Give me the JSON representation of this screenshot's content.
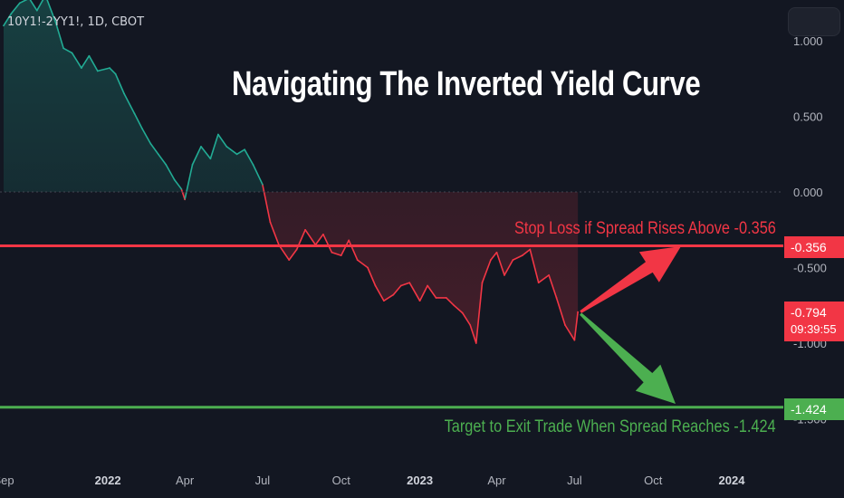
{
  "ticker": "10Y1!-2YY1!, 1D, CBOT",
  "title": "Navigating The Inverted Yield Curve",
  "annotations": {
    "stop_loss": "Stop Loss if Spread Rises Above -0.356",
    "target": "Target to Exit Trade When Spread Reaches -1.424"
  },
  "price_tags": {
    "stop": "-0.356",
    "current": "-0.794",
    "countdown": "09:39:55",
    "target": "-1.424"
  },
  "colors": {
    "background": "#131722",
    "up": "#22ab94",
    "down": "#f23645",
    "stop_line": "#f23645",
    "target_line": "#4caf50",
    "axis_text": "#b2b5be"
  },
  "chart_data": {
    "type": "line",
    "title": "Navigating The Inverted Yield Curve",
    "series": [
      {
        "name": "10Y1!-2YY1!",
        "x": [
          "2021-09-01",
          "2021-09-10",
          "2021-09-20",
          "2021-10-01",
          "2021-10-10",
          "2021-10-20",
          "2021-11-01",
          "2021-11-10",
          "2021-11-20",
          "2021-12-01",
          "2021-12-10",
          "2021-12-20",
          "2022-01-03",
          "2022-01-10",
          "2022-01-20",
          "2022-02-01",
          "2022-02-10",
          "2022-02-20",
          "2022-03-01",
          "2022-03-10",
          "2022-03-20",
          "2022-03-28",
          "2022-04-01",
          "2022-04-10",
          "2022-04-20",
          "2022-05-01",
          "2022-05-10",
          "2022-05-20",
          "2022-06-01",
          "2022-06-10",
          "2022-06-20",
          "2022-07-01",
          "2022-07-10",
          "2022-07-20",
          "2022-08-01",
          "2022-08-10",
          "2022-08-20",
          "2022-09-01",
          "2022-09-10",
          "2022-09-20",
          "2022-10-01",
          "2022-10-10",
          "2022-10-20",
          "2022-11-01",
          "2022-11-10",
          "2022-11-20",
          "2022-12-01",
          "2022-12-10",
          "2022-12-20",
          "2023-01-01",
          "2023-01-10",
          "2023-01-20",
          "2023-02-01",
          "2023-02-10",
          "2023-02-20",
          "2023-03-01",
          "2023-03-08",
          "2023-03-15",
          "2023-03-25",
          "2023-04-01",
          "2023-04-10",
          "2023-04-20",
          "2023-05-01",
          "2023-05-10",
          "2023-05-20",
          "2023-06-01",
          "2023-06-10",
          "2023-06-20",
          "2023-07-01",
          "2023-07-05"
        ],
        "values": [
          1.1,
          1.18,
          1.25,
          1.28,
          1.2,
          1.3,
          1.12,
          0.95,
          0.92,
          0.82,
          0.9,
          0.8,
          0.82,
          0.78,
          0.65,
          0.52,
          0.42,
          0.32,
          0.25,
          0.18,
          0.08,
          0.02,
          -0.05,
          0.18,
          0.3,
          0.22,
          0.38,
          0.3,
          0.25,
          0.28,
          0.18,
          0.05,
          -0.2,
          -0.35,
          -0.45,
          -0.38,
          -0.25,
          -0.35,
          -0.28,
          -0.4,
          -0.42,
          -0.32,
          -0.45,
          -0.5,
          -0.62,
          -0.72,
          -0.68,
          -0.62,
          -0.6,
          -0.72,
          -0.62,
          -0.7,
          -0.7,
          -0.75,
          -0.8,
          -0.88,
          -1.0,
          -0.6,
          -0.45,
          -0.4,
          -0.55,
          -0.45,
          -0.42,
          -0.38,
          -0.6,
          -0.55,
          -0.7,
          -0.88,
          -0.98,
          -0.794
        ]
      }
    ],
    "x_ticks": [
      "Sep",
      "2022",
      "Apr",
      "Jul",
      "Oct",
      "2023",
      "Apr",
      "Jul",
      "Oct",
      "2024"
    ],
    "y_ticks": [
      "1.000",
      "0.500",
      "0.000",
      "-0.500",
      "-1.000",
      "-1.500"
    ],
    "ylim": [
      -1.72,
      1.28
    ],
    "reference_lines": [
      {
        "label": "Stop Loss if Spread Rises Above -0.356",
        "value": -0.356
      },
      {
        "label": "Target to Exit Trade When Spread Reaches -1.424",
        "value": -1.424
      }
    ],
    "last_value": -0.794,
    "grid": false,
    "y_axis_position": "right"
  }
}
